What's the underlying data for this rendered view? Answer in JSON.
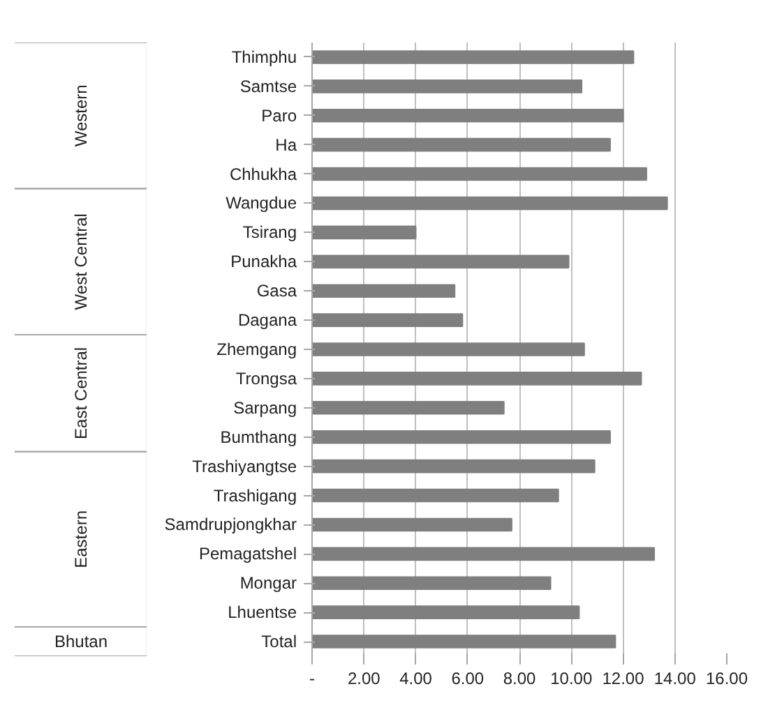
{
  "chart_data": {
    "type": "bar",
    "orientation": "horizontal",
    "categories": [
      "Thimphu",
      "Samtse",
      "Paro",
      "Ha",
      "Chhukha",
      "Wangdue",
      "Tsirang",
      "Punakha",
      "Gasa",
      "Dagana",
      "Zhemgang",
      "Trongsa",
      "Sarpang",
      "Bumthang",
      "Trashiyangtse",
      "Trashigang",
      "Samdrupjongkhar",
      "Pemagatshel",
      "Mongar",
      "Lhuentse",
      "Total"
    ],
    "values": [
      12.4,
      10.4,
      12.0,
      11.5,
      12.9,
      13.7,
      4.0,
      9.9,
      5.5,
      5.8,
      10.5,
      12.7,
      7.4,
      11.5,
      10.9,
      9.5,
      7.7,
      13.2,
      9.2,
      10.3,
      11.7
    ],
    "color": "#7f7f7f",
    "xlim": [
      0,
      16
    ],
    "xticks": [
      {
        "value": 0,
        "label": "-"
      },
      {
        "value": 2,
        "label": "2.00"
      },
      {
        "value": 4,
        "label": "4.00"
      },
      {
        "value": 6,
        "label": "6.00"
      },
      {
        "value": 8,
        "label": "8.00"
      },
      {
        "value": 10,
        "label": "10.00"
      },
      {
        "value": 12,
        "label": "12.00"
      },
      {
        "value": 14,
        "label": "14.00"
      },
      {
        "value": 16,
        "label": "16.00"
      }
    ],
    "grid": "x",
    "annotations": [
      "Western",
      "West Central",
      "East Central",
      "Eastern",
      "Bhutan"
    ]
  }
}
